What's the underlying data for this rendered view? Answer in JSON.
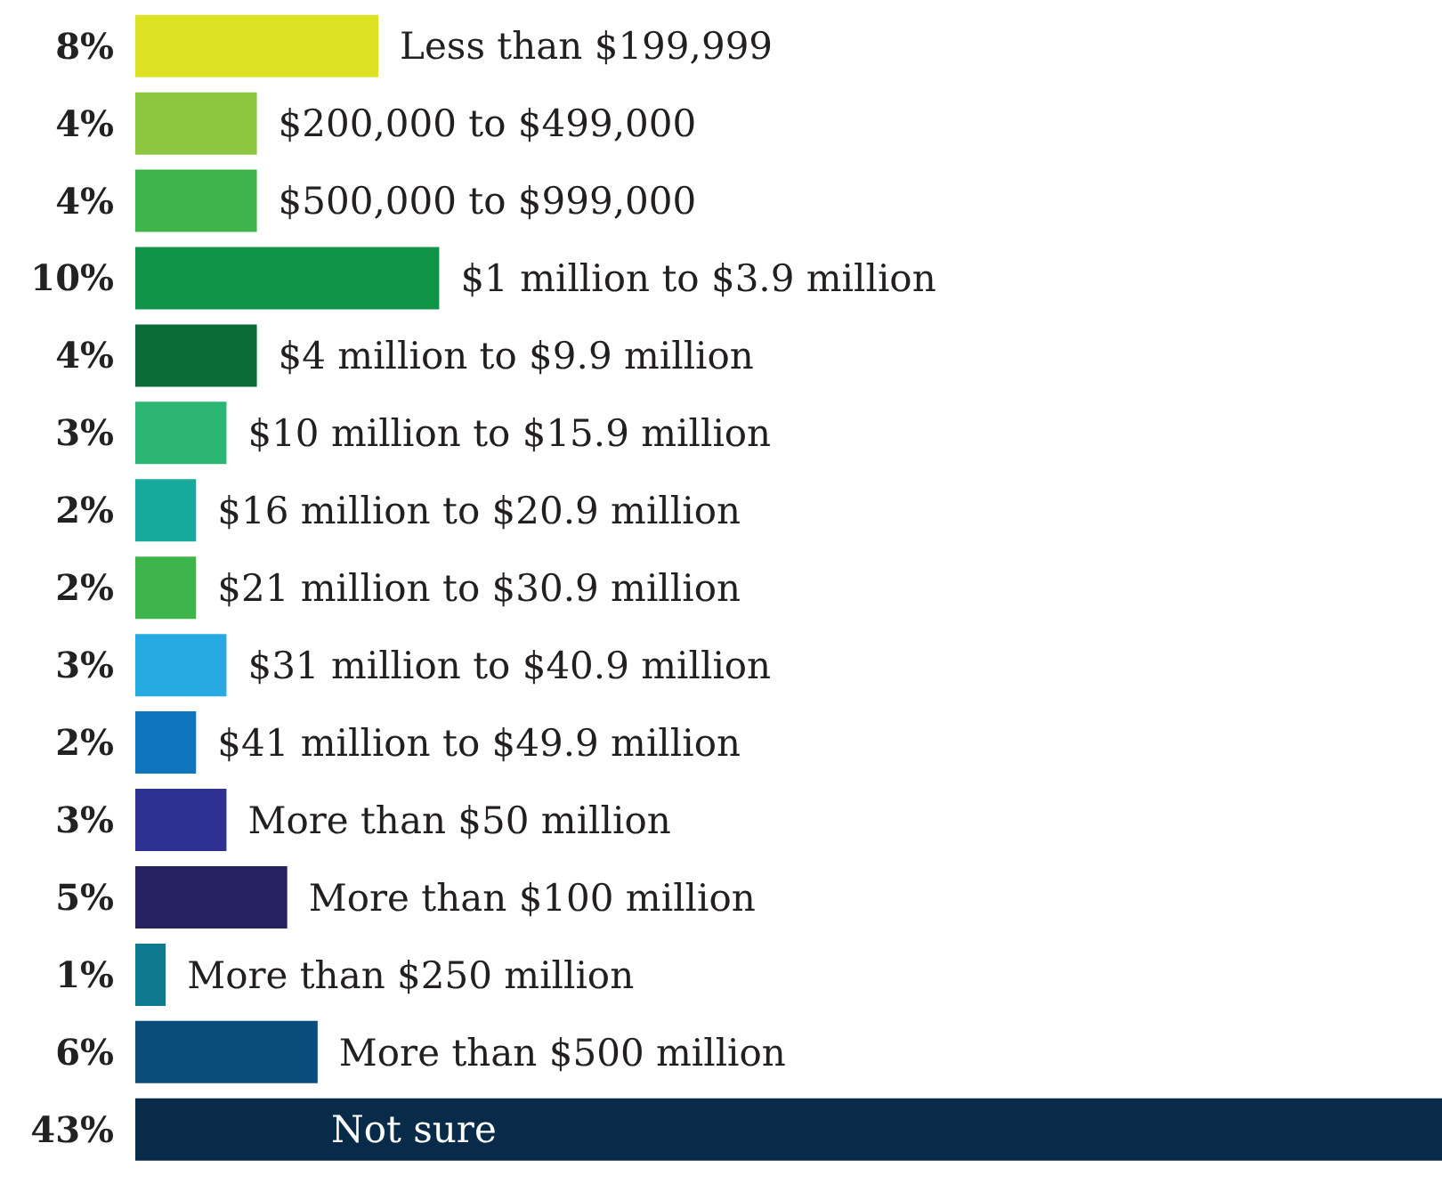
{
  "chart_data": {
    "type": "bar",
    "orientation": "horizontal",
    "tick_labels": false,
    "grid": false,
    "legend": false,
    "categories": [
      "Less than $199,999",
      "$200,000 to $499,000",
      "$500,000 to $999,000",
      "$1 million to $3.9 million",
      "$4 million to $9.9 million",
      "$10 million to $15.9 million",
      "$16 million to $20.9 million",
      "$21 million to $30.9 million",
      "$31 million to $40.9 million",
      "$41 million to $49.9 million",
      "More than $50 million",
      "More than $100 million",
      "More than $250 million",
      "More than $500 million",
      "Not sure"
    ],
    "values": [
      8,
      4,
      4,
      10,
      4,
      3,
      2,
      2,
      3,
      2,
      3,
      5,
      1,
      6,
      43
    ],
    "value_labels": [
      "8%",
      "4%",
      "4%",
      "10%",
      "4%",
      "3%",
      "2%",
      "2%",
      "3%",
      "2%",
      "3%",
      "5%",
      "1%",
      "6%",
      "43%"
    ],
    "colors": [
      "#dde223",
      "#8dc63f",
      "#3db54a",
      "#0e9347",
      "#0b6b37",
      "#2bb673",
      "#16aa9c",
      "#3db54a",
      "#27aae1",
      "#0f75bc",
      "#2e3192",
      "#262262",
      "#0e7a8f",
      "#0b4d7a",
      "#082b4a"
    ]
  }
}
